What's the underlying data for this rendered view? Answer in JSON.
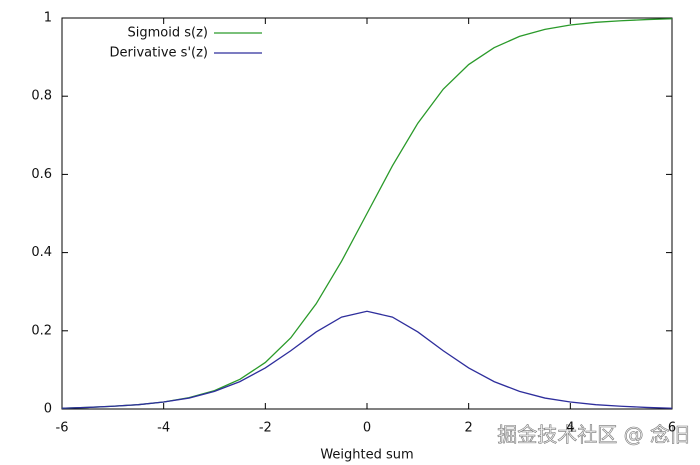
{
  "chart_data": {
    "type": "line",
    "xlabel": "Weighted sum",
    "x": [
      -6,
      -5.5,
      -5,
      -4.5,
      -4,
      -3.5,
      -3,
      -2.5,
      -2,
      -1.5,
      -1,
      -0.5,
      0,
      0.5,
      1,
      1.5,
      2,
      2.5,
      3,
      3.5,
      4,
      4.5,
      5,
      5.5,
      6
    ],
    "series": [
      {
        "name": "Sigmoid s(z)",
        "color": "#2a9a2a",
        "values": [
          0.002,
          0.004,
          0.007,
          0.011,
          0.018,
          0.029,
          0.047,
          0.076,
          0.119,
          0.182,
          0.269,
          0.378,
          0.5,
          0.622,
          0.731,
          0.818,
          0.881,
          0.924,
          0.953,
          0.971,
          0.982,
          0.989,
          0.993,
          0.996,
          0.998
        ]
      },
      {
        "name": "Derivative s'(z)",
        "color": "#2e2e9c",
        "values": [
          0.002,
          0.004,
          0.007,
          0.011,
          0.018,
          0.028,
          0.045,
          0.07,
          0.105,
          0.149,
          0.197,
          0.235,
          0.25,
          0.235,
          0.197,
          0.149,
          0.105,
          0.07,
          0.045,
          0.028,
          0.018,
          0.011,
          0.007,
          0.004,
          0.002
        ]
      }
    ],
    "xlim": [
      -6,
      6
    ],
    "xticks": [
      -6,
      -4,
      -2,
      0,
      2,
      4,
      6
    ],
    "ylim": [
      0,
      1
    ],
    "yticks": [
      0,
      0.2,
      0.4,
      0.6,
      0.8,
      1
    ],
    "legend": "upper-left",
    "grid": false
  },
  "watermark": "掘金技术社区 @ 念旧"
}
